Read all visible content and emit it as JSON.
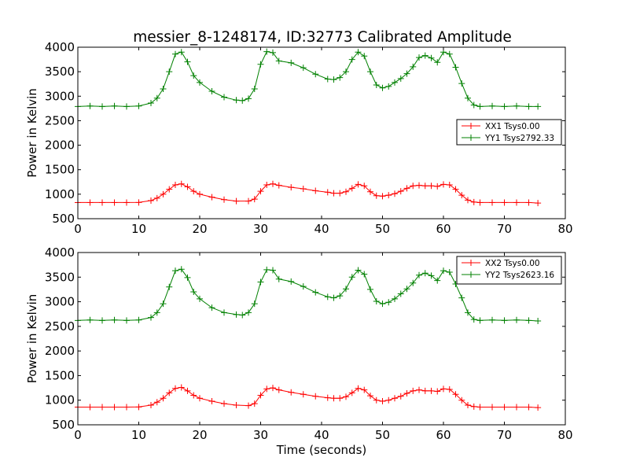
{
  "figure_title": "messier_8-1248174, ID:32773 Calibrated Amplitude",
  "chart_data": [
    {
      "type": "line",
      "title": "messier_8-1248174, ID:32773 Calibrated Amplitude",
      "xlabel": "",
      "ylabel": "Power in Kelvin",
      "xlim": [
        0,
        80
      ],
      "ylim": [
        500,
        4000
      ],
      "xticks": [
        0,
        10,
        20,
        30,
        40,
        50,
        60,
        70,
        80
      ],
      "yticks": [
        500,
        1000,
        1500,
        2000,
        2500,
        3000,
        3500,
        4000
      ],
      "grid": false,
      "legend_position": "center-right",
      "marker": "+",
      "series": [
        {
          "name": "XX1 Tsys0.00",
          "color": "#ff0000",
          "x": [
            0,
            2,
            4,
            6,
            8,
            10,
            12,
            13,
            14,
            15,
            16,
            17,
            18,
            19,
            20,
            22,
            24,
            26,
            28,
            29,
            30,
            31,
            32,
            33,
            35,
            37,
            39,
            41,
            42,
            43,
            44,
            45,
            46,
            47,
            48,
            49,
            50,
            51,
            52,
            53,
            54,
            55,
            56,
            57,
            58,
            59,
            60,
            61,
            62,
            63,
            64,
            65,
            66,
            68,
            70,
            72,
            74,
            75.5
          ],
          "y": [
            830,
            830,
            830,
            830,
            830,
            832,
            870,
            920,
            1000,
            1100,
            1190,
            1210,
            1150,
            1060,
            1000,
            940,
            890,
            860,
            860,
            900,
            1060,
            1190,
            1210,
            1180,
            1140,
            1110,
            1070,
            1040,
            1020,
            1020,
            1050,
            1120,
            1200,
            1170,
            1050,
            970,
            960,
            980,
            1010,
            1060,
            1120,
            1170,
            1180,
            1170,
            1170,
            1160,
            1200,
            1190,
            1100,
            980,
            880,
            840,
            830,
            830,
            830,
            830,
            830,
            820
          ]
        },
        {
          "name": "YY1 Tsys2792.33",
          "color": "#008000",
          "x": [
            0,
            2,
            4,
            6,
            8,
            10,
            12,
            13,
            14,
            15,
            16,
            17,
            18,
            19,
            20,
            22,
            24,
            26,
            27,
            28,
            29,
            30,
            31,
            32,
            33,
            35,
            37,
            39,
            41,
            42,
            43,
            44,
            45,
            46,
            47,
            48,
            49,
            50,
            51,
            52,
            53,
            54,
            55,
            56,
            57,
            58,
            59,
            60,
            61,
            62,
            63,
            64,
            65,
            66,
            68,
            70,
            72,
            74,
            75.5
          ],
          "y": [
            2790,
            2800,
            2790,
            2800,
            2790,
            2800,
            2860,
            2960,
            3150,
            3500,
            3860,
            3900,
            3700,
            3420,
            3280,
            3100,
            2980,
            2920,
            2910,
            2950,
            3150,
            3650,
            3910,
            3890,
            3720,
            3680,
            3580,
            3450,
            3350,
            3340,
            3380,
            3500,
            3750,
            3900,
            3820,
            3500,
            3230,
            3170,
            3200,
            3280,
            3360,
            3460,
            3600,
            3790,
            3830,
            3780,
            3690,
            3900,
            3860,
            3590,
            3260,
            2960,
            2820,
            2790,
            2800,
            2790,
            2800,
            2790,
            2790
          ]
        }
      ]
    },
    {
      "type": "line",
      "title": "",
      "xlabel": "Time (seconds)",
      "ylabel": "Power in Kelvin",
      "xlim": [
        0,
        80
      ],
      "ylim": [
        500,
        4000
      ],
      "xticks": [
        0,
        10,
        20,
        30,
        40,
        50,
        60,
        70,
        80
      ],
      "yticks": [
        500,
        1000,
        1500,
        2000,
        2500,
        3000,
        3500,
        4000
      ],
      "grid": false,
      "legend_position": "top-right",
      "marker": "+",
      "series": [
        {
          "name": "XX2 Tsys0.00",
          "color": "#ff0000",
          "x": [
            0,
            2,
            4,
            6,
            8,
            10,
            12,
            13,
            14,
            15,
            16,
            17,
            18,
            19,
            20,
            22,
            24,
            26,
            28,
            29,
            30,
            31,
            32,
            33,
            35,
            37,
            39,
            41,
            42,
            43,
            44,
            45,
            46,
            47,
            48,
            49,
            50,
            51,
            52,
            53,
            54,
            55,
            56,
            57,
            58,
            59,
            60,
            61,
            62,
            63,
            64,
            65,
            66,
            68,
            70,
            72,
            74,
            75.5
          ],
          "y": [
            860,
            860,
            860,
            860,
            860,
            862,
            900,
            960,
            1040,
            1150,
            1240,
            1260,
            1190,
            1100,
            1040,
            980,
            930,
            900,
            890,
            930,
            1100,
            1230,
            1250,
            1210,
            1160,
            1120,
            1080,
            1050,
            1040,
            1040,
            1070,
            1150,
            1240,
            1210,
            1090,
            1000,
            980,
            1000,
            1040,
            1080,
            1140,
            1190,
            1210,
            1190,
            1190,
            1180,
            1230,
            1220,
            1120,
            1000,
            900,
            870,
            860,
            860,
            860,
            860,
            860,
            850
          ]
        },
        {
          "name": "YY2 Tsys2623.16",
          "color": "#008000",
          "x": [
            0,
            2,
            4,
            6,
            8,
            10,
            12,
            13,
            14,
            15,
            16,
            17,
            18,
            19,
            20,
            22,
            24,
            26,
            27,
            28,
            29,
            30,
            31,
            32,
            33,
            35,
            37,
            39,
            41,
            42,
            43,
            44,
            45,
            46,
            47,
            48,
            49,
            50,
            51,
            52,
            53,
            54,
            55,
            56,
            57,
            58,
            59,
            60,
            61,
            62,
            63,
            64,
            65,
            66,
            68,
            70,
            72,
            74,
            75.5
          ],
          "y": [
            2620,
            2630,
            2620,
            2630,
            2620,
            2630,
            2680,
            2780,
            2960,
            3300,
            3630,
            3660,
            3490,
            3200,
            3060,
            2880,
            2780,
            2740,
            2730,
            2780,
            2960,
            3400,
            3650,
            3640,
            3460,
            3410,
            3310,
            3190,
            3100,
            3080,
            3120,
            3260,
            3500,
            3640,
            3560,
            3250,
            3010,
            2960,
            2990,
            3060,
            3160,
            3260,
            3380,
            3540,
            3580,
            3530,
            3430,
            3630,
            3600,
            3360,
            3080,
            2780,
            2640,
            2620,
            2630,
            2620,
            2630,
            2620,
            2610
          ]
        }
      ]
    }
  ]
}
